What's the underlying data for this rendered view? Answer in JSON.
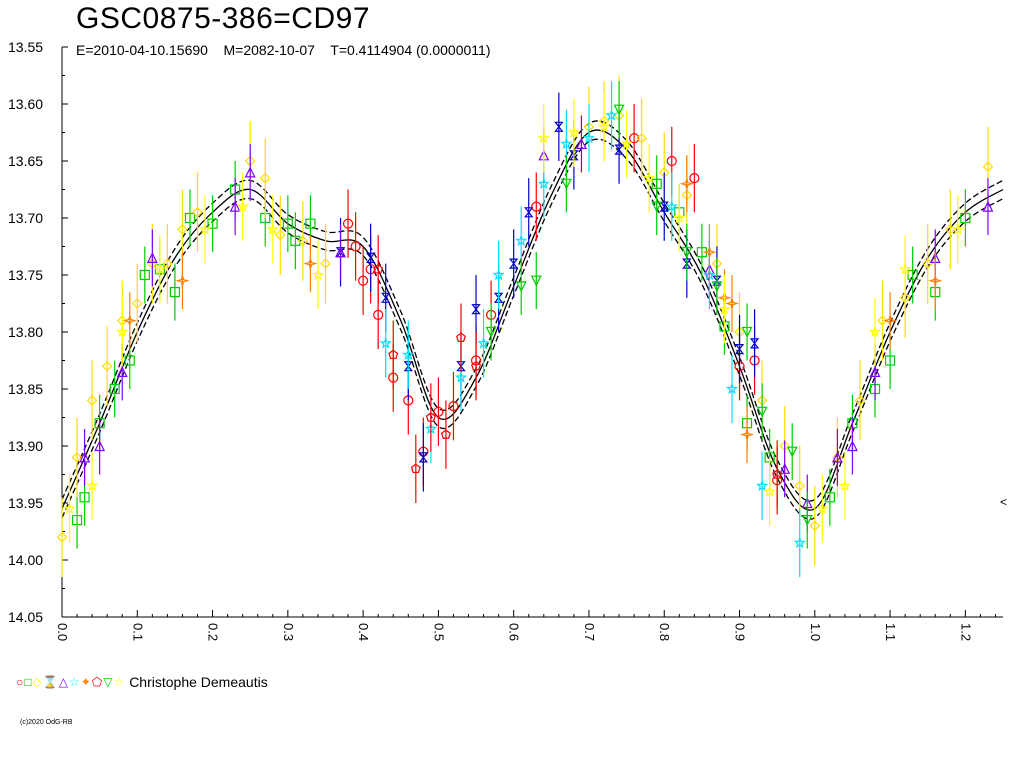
{
  "header": {
    "title": "GSC0875-386=CD97",
    "subtitle": "E=2010-04-10.15690    M=2082-10-07    T=0.4114904 (0.0000011)"
  },
  "legend": {
    "symbols": [
      {
        "glyph": "○",
        "color": "#ff0000"
      },
      {
        "glyph": "□",
        "color": "#00cc00"
      },
      {
        "glyph": "◇",
        "color": "#ffff00"
      },
      {
        "glyph": "⌛",
        "color": "#0000cc"
      },
      {
        "glyph": "△",
        "color": "#8000ff"
      },
      {
        "glyph": "☆",
        "color": "#00ffff"
      },
      {
        "glyph": "✦",
        "color": "#ff8000"
      },
      {
        "glyph": "⬠",
        "color": "#ff0000"
      },
      {
        "glyph": "▽",
        "color": "#00cc00"
      },
      {
        "glyph": "☆",
        "color": "#ffff00"
      }
    ],
    "observer": "Christophe Demeautis"
  },
  "copyright": "(c)2020 OdG-RB",
  "right_marker": "<",
  "chart_data": {
    "type": "scatter",
    "title": "GSC0875-386=CD97",
    "xlabel": "",
    "ylabel": "",
    "xlim": [
      0.0,
      1.25
    ],
    "ylim": [
      13.55,
      14.05
    ],
    "y_inverted": true,
    "grid": false,
    "x_ticks": [
      "0.0",
      "0.1",
      "0.2",
      "0.3",
      "0.4",
      "0.5",
      "0.6",
      "0.7",
      "0.8",
      "0.9",
      "1.0",
      "1.1",
      "1.2"
    ],
    "y_ticks": [
      "13.55",
      "13.60",
      "13.65",
      "13.70",
      "13.75",
      "13.80",
      "13.85",
      "13.90",
      "13.95",
      "14.00",
      "14.05"
    ],
    "fit_curve": {
      "x": [
        0.0,
        0.05,
        0.1,
        0.15,
        0.2,
        0.25,
        0.3,
        0.35,
        0.4,
        0.45,
        0.5,
        0.55,
        0.6,
        0.65,
        0.7,
        0.75,
        0.8,
        0.85,
        0.9,
        0.95,
        1.0,
        1.05,
        1.1,
        1.15,
        1.2,
        1.25
      ],
      "y": [
        13.955,
        13.88,
        13.8,
        13.735,
        13.695,
        13.675,
        13.705,
        13.72,
        13.725,
        13.79,
        13.875,
        13.84,
        13.76,
        13.68,
        13.625,
        13.64,
        13.695,
        13.75,
        13.83,
        13.92,
        13.955,
        13.88,
        13.8,
        13.735,
        13.695,
        13.675
      ],
      "band": 0.008
    },
    "series": [
      {
        "marker": "circle",
        "color": "#ff0000",
        "errorbar": 0.03,
        "x": [
          0.38,
          0.39,
          0.4,
          0.41,
          0.42,
          0.44,
          0.46,
          0.48,
          0.5,
          0.52,
          0.55,
          0.57,
          0.63,
          0.76,
          0.81,
          0.84,
          0.9,
          0.92,
          0.95
        ],
        "y": [
          13.705,
          13.725,
          13.755,
          13.745,
          13.785,
          13.84,
          13.86,
          13.905,
          13.87,
          13.865,
          13.825,
          13.785,
          13.69,
          13.63,
          13.65,
          13.665,
          13.83,
          13.825,
          13.93
        ]
      },
      {
        "marker": "square",
        "color": "#00cc00",
        "errorbar": 0.025,
        "x": [
          0.02,
          0.03,
          0.05,
          0.07,
          0.09,
          0.11,
          0.13,
          0.15,
          0.17,
          0.2,
          0.23,
          0.27,
          0.3,
          0.31,
          0.33,
          0.79,
          0.82,
          0.85,
          0.88,
          0.91,
          0.94,
          1.02,
          1.05,
          1.08,
          1.1,
          1.13,
          1.16,
          1.2
        ],
        "y": [
          13.965,
          13.945,
          13.88,
          13.85,
          13.825,
          13.75,
          13.745,
          13.765,
          13.7,
          13.705,
          13.675,
          13.7,
          13.705,
          13.72,
          13.705,
          13.67,
          13.695,
          13.73,
          13.795,
          13.88,
          13.91,
          13.945,
          13.88,
          13.85,
          13.825,
          13.75,
          13.765,
          13.7
        ]
      },
      {
        "marker": "diamond",
        "color": "#ffdd00",
        "errorbar": 0.035,
        "x": [
          0.0,
          0.02,
          0.04,
          0.06,
          0.08,
          0.1,
          0.12,
          0.14,
          0.16,
          0.18,
          0.25,
          0.27,
          0.29,
          0.32,
          0.35,
          0.7,
          0.72,
          0.74,
          0.77,
          0.8,
          0.83,
          0.87,
          0.9,
          0.93,
          0.96,
          0.98,
          1.0,
          1.03,
          1.06,
          1.09,
          1.12,
          1.15,
          1.18,
          1.23
        ],
        "y": [
          13.98,
          13.91,
          13.86,
          13.83,
          13.79,
          13.775,
          13.74,
          13.74,
          13.71,
          13.695,
          13.65,
          13.665,
          13.715,
          13.72,
          13.74,
          13.62,
          13.615,
          13.61,
          13.63,
          13.66,
          13.68,
          13.74,
          13.8,
          13.86,
          13.9,
          13.935,
          13.97,
          13.91,
          13.86,
          13.79,
          13.77,
          13.74,
          13.71,
          13.655
        ]
      },
      {
        "marker": "hourglass",
        "color": "#0000cc",
        "errorbar": 0.03,
        "x": [
          0.37,
          0.41,
          0.43,
          0.46,
          0.48,
          0.53,
          0.55,
          0.58,
          0.6,
          0.62,
          0.66,
          0.68,
          0.74,
          0.8,
          0.83,
          0.87,
          0.9,
          0.92
        ],
        "y": [
          13.73,
          13.735,
          13.77,
          13.83,
          13.91,
          13.83,
          13.78,
          13.77,
          13.74,
          13.695,
          13.62,
          13.645,
          13.64,
          13.69,
          13.74,
          13.755,
          13.815,
          13.81
        ]
      },
      {
        "marker": "triangle-up",
        "color": "#8000ff",
        "errorbar": 0.025,
        "x": [
          0.03,
          0.05,
          0.08,
          0.12,
          0.23,
          0.25,
          0.37,
          0.64,
          0.69,
          0.86,
          0.96,
          0.99,
          1.03,
          1.05,
          1.08,
          1.16,
          1.23
        ],
        "y": [
          13.91,
          13.9,
          13.835,
          13.735,
          13.69,
          13.66,
          13.73,
          13.645,
          13.635,
          13.745,
          13.92,
          13.95,
          13.91,
          13.9,
          13.835,
          13.735,
          13.69
        ]
      },
      {
        "marker": "star",
        "color": "#00e0ff",
        "errorbar": 0.03,
        "x": [
          0.43,
          0.46,
          0.49,
          0.53,
          0.56,
          0.58,
          0.61,
          0.64,
          0.67,
          0.7,
          0.73,
          0.81,
          0.86,
          0.89,
          0.93,
          0.98
        ],
        "y": [
          13.81,
          13.82,
          13.885,
          13.84,
          13.81,
          13.75,
          13.72,
          13.67,
          13.635,
          13.63,
          13.61,
          13.69,
          13.75,
          13.85,
          13.935,
          13.985
        ]
      },
      {
        "marker": "star4",
        "color": "#ff8000",
        "errorbar": 0.025,
        "x": [
          0.09,
          0.16,
          0.33,
          0.83,
          0.86,
          0.88,
          0.89,
          0.91,
          1.1,
          1.16
        ],
        "y": [
          13.79,
          13.755,
          13.74,
          13.67,
          13.73,
          13.77,
          13.775,
          13.89,
          13.79,
          13.755
        ]
      },
      {
        "marker": "pentagon",
        "color": "#ff0000",
        "errorbar": 0.03,
        "x": [
          0.42,
          0.44,
          0.47,
          0.49,
          0.51,
          0.53,
          0.55,
          0.95
        ],
        "y": [
          13.745,
          13.82,
          13.92,
          13.875,
          13.89,
          13.805,
          13.83,
          13.925
        ]
      },
      {
        "marker": "triangle-down",
        "color": "#00cc00",
        "errorbar": 0.025,
        "x": [
          0.57,
          0.61,
          0.63,
          0.67,
          0.74,
          0.79,
          0.83,
          0.87,
          0.91,
          0.93,
          0.97,
          0.99
        ],
        "y": [
          13.8,
          13.76,
          13.755,
          13.67,
          13.605,
          13.69,
          13.73,
          13.76,
          13.8,
          13.87,
          13.905,
          13.965
        ]
      },
      {
        "marker": "star",
        "color": "#ffff00",
        "errorbar": 0.03,
        "x": [
          0.01,
          0.04,
          0.08,
          0.13,
          0.19,
          0.24,
          0.28,
          0.34,
          0.64,
          0.68,
          0.72,
          0.75,
          0.78,
          0.82,
          0.88,
          0.94,
          1.01,
          1.04,
          1.08,
          1.12,
          1.19
        ],
        "y": [
          13.955,
          13.935,
          13.8,
          13.745,
          13.71,
          13.69,
          13.71,
          13.75,
          13.63,
          13.625,
          13.62,
          13.635,
          13.665,
          13.7,
          13.78,
          13.94,
          13.955,
          13.935,
          13.8,
          13.745,
          13.71
        ]
      }
    ]
  }
}
